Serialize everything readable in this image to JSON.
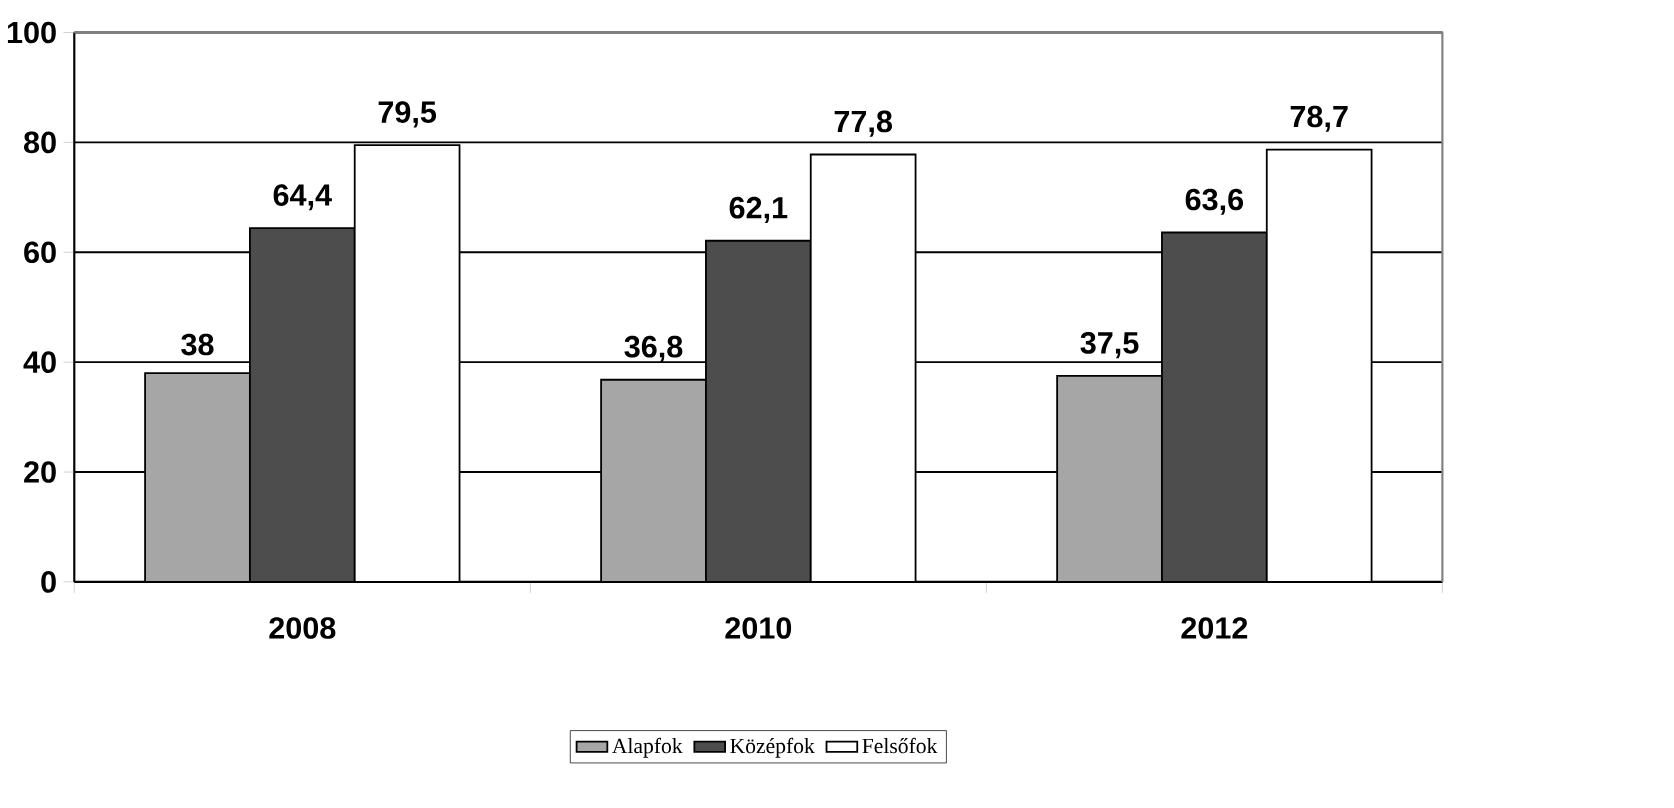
{
  "chart_data": {
    "type": "bar",
    "categories": [
      "2008",
      "2010",
      "2012"
    ],
    "series": [
      {
        "name": "Alapfok",
        "color": "#a6a6a6",
        "values": [
          38,
          36.8,
          37.5
        ],
        "value_labels": [
          "38",
          "36,8",
          "37,5"
        ]
      },
      {
        "name": "Középfok",
        "color": "#4d4d4d",
        "values": [
          64.4,
          62.1,
          63.6
        ],
        "value_labels": [
          "64,4",
          "62,1",
          "63,6"
        ]
      },
      {
        "name": "Felsőfok",
        "color": "#ffffff",
        "values": [
          79.5,
          77.8,
          78.7
        ],
        "value_labels": [
          "79,5",
          "77,8",
          "78,7"
        ]
      }
    ],
    "ylim": [
      0,
      100
    ],
    "yticks": [
      0,
      20,
      40,
      60,
      80,
      100
    ],
    "grid": "y",
    "legend": "bottom"
  }
}
